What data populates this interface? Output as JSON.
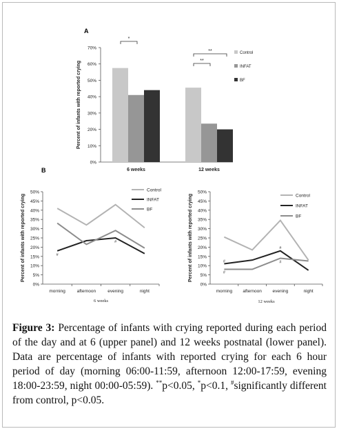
{
  "figure_label_a": "A",
  "figure_label_b": "B",
  "chart_data": [
    {
      "type": "bar",
      "panel": "A",
      "categories": [
        "6 weeks",
        "12 weeks"
      ],
      "series": [
        {
          "name": "Control",
          "color": "#c8c8c8",
          "values": [
            57.5,
            45.5
          ]
        },
        {
          "name": "INFAT",
          "color": "#969696",
          "values": [
            41,
            23.5
          ]
        },
        {
          "name": "BF",
          "color": "#333333",
          "values": [
            44,
            20
          ]
        }
      ],
      "ylabel": "Percent of infants with reported crying",
      "yticks": [
        "0%",
        "10%",
        "20%",
        "30%",
        "40%",
        "50%",
        "60%",
        "70%"
      ],
      "ylim": [
        0,
        70
      ],
      "legend": "right",
      "annotations": [
        "*",
        "**",
        "**"
      ]
    },
    {
      "type": "line",
      "panel": "B-left",
      "categories": [
        "morning",
        "afternoon",
        "evening",
        "night"
      ],
      "xlabel": "6 weeks",
      "ylabel": "Percent of infants with reported crying",
      "yticks": [
        "0%",
        "5%",
        "10%",
        "15%",
        "20%",
        "25%",
        "30%",
        "35%",
        "40%",
        "45%",
        "50%"
      ],
      "ylim": [
        0,
        50
      ],
      "series": [
        {
          "name": "Control",
          "color": "#b3b3b3",
          "values": [
            41,
            32,
            43,
            30.5
          ]
        },
        {
          "name": "INFAT",
          "color": "#222222",
          "values": [
            18,
            23.5,
            25,
            16.5
          ]
        },
        {
          "name": "BF",
          "color": "#8c8c8c",
          "values": [
            33,
            21.5,
            29,
            19.5
          ]
        }
      ],
      "legend": "top-right",
      "annotations": [
        "#",
        "#"
      ]
    },
    {
      "type": "line",
      "panel": "B-right",
      "categories": [
        "morning",
        "afternoon",
        "evening",
        "night"
      ],
      "xlabel": "12 weeks",
      "ylabel": "Percent of infants with reported crying",
      "yticks": [
        "0%",
        "5%",
        "10%",
        "15%",
        "20%",
        "25%",
        "30%",
        "35%",
        "40%",
        "45%",
        "50%"
      ],
      "ylim": [
        0,
        50
      ],
      "series": [
        {
          "name": "Control",
          "color": "#b3b3b3",
          "values": [
            25.5,
            18.5,
            34.5,
            13
          ]
        },
        {
          "name": "INFAT",
          "color": "#222222",
          "values": [
            11,
            13,
            18,
            7.5
          ]
        },
        {
          "name": "BF",
          "color": "#8c8c8c",
          "values": [
            8,
            8,
            14,
            12.5
          ]
        }
      ],
      "legend": "top-right",
      "annotations": [
        "#",
        "#",
        "#",
        "#"
      ]
    }
  ],
  "caption": {
    "label": "Figure 3:",
    "text_1": " Percentage of infants with crying reported during each period of the day and at 6 (upper panel) and 12 weeks postnatal (lower panel). Data are percentage of infants with reported crying for each 6 hour period of day (morning 06:00-11:59, afternoon 12:00-17:59, evening 18:00-23:59, night 00:00-05:59). ",
    "sup_1": "**",
    "text_2": "p<0.05, ",
    "sup_2": "*",
    "text_3": "p<0.1, ",
    "sup_3": "#",
    "text_4": "significantly different from control, p<0.05."
  }
}
